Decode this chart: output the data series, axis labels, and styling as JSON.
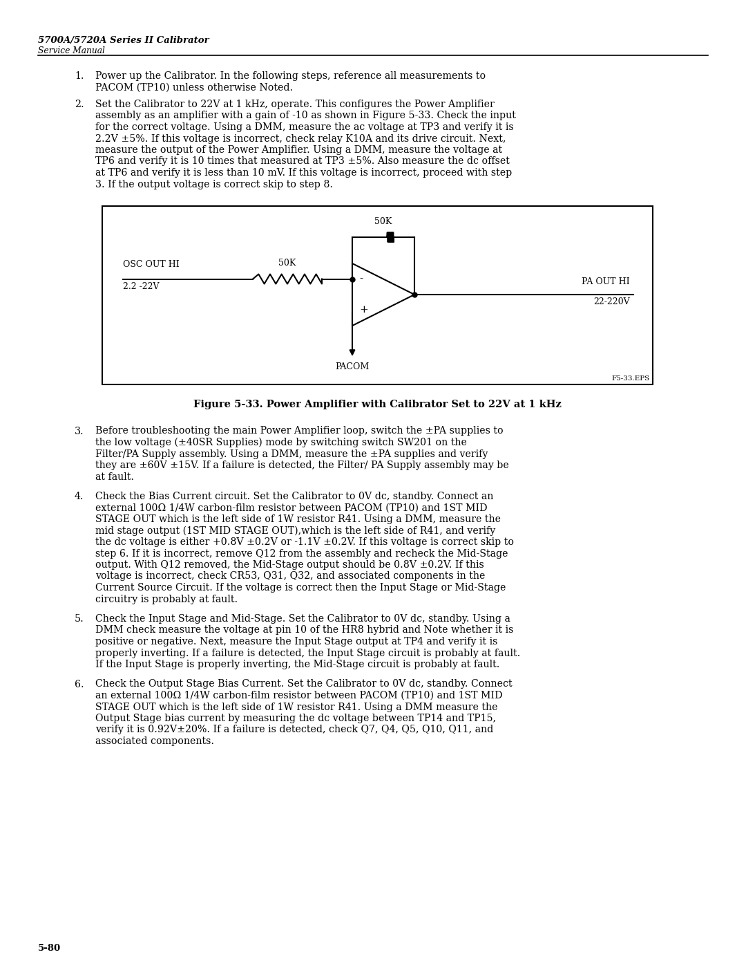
{
  "page_title": "5700A/5720A Series II Calibrator",
  "page_subtitle": "Service Manual",
  "page_number": "5-80",
  "figure_label": "F5-33.EPS",
  "figure_caption": "Figure 5-33. Power Amplifier with Calibrator Set to 22V at 1 kHz",
  "bg_color": "#ffffff",
  "text_color": "#000000",
  "para1_num": "1.",
  "para1_lines": [
    "Power up the Calibrator. In the following steps, reference all measurements to",
    "PACOM (TP10) unless otherwise Noted."
  ],
  "para2_num": "2.",
  "para2_lines": [
    "Set the Calibrator to 22V at 1 kHz, operate. This configures the Power Amplifier",
    "assembly as an amplifier with a gain of -10 as shown in Figure 5-33. Check the input",
    "for the correct voltage. Using a DMM, measure the ac voltage at TP3 and verify it is",
    "2.2V ±5%. If this voltage is incorrect, check relay K10A and its drive circuit. Next,",
    "measure the output of the Power Amplifier. Using a DMM, measure the voltage at",
    "TP6 and verify it is 10 times that measured at TP3 ±5%. Also measure the dc offset",
    "at TP6 and verify it is less than 10 mV. If this voltage is incorrect, proceed with step",
    "3. If the output voltage is correct skip to step 8."
  ],
  "para3_num": "3.",
  "para3_lines": [
    "Before troubleshooting the main Power Amplifier loop, switch the ±PA supplies to",
    "the low voltage (±40SR Supplies) mode by switching switch SW201 on the",
    "Filter/PA Supply assembly. Using a DMM, measure the ±PA supplies and verify",
    "they are ±60V ±15V. If a failure is detected, the Filter/ PA Supply assembly may be",
    "at fault."
  ],
  "para4_num": "4.",
  "para4_lines": [
    "Check the Bias Current circuit. Set the Calibrator to 0V dc, standby. Connect an",
    "external 100Ω 1/4W carbon-film resistor between PACOM (TP10) and 1ST MID",
    "STAGE OUT which is the left side of 1W resistor R41. Using a DMM, measure the",
    "mid stage output (1ST MID STAGE OUT),which is the left side of R41, and verify",
    "the dc voltage is either +0.8V ±0.2V or -1.1V ±0.2V. If this voltage is correct skip to",
    "step 6. If it is incorrect, remove Q12 from the assembly and recheck the Mid-Stage",
    "output. With Q12 removed, the Mid-Stage output should be 0.8V ±0.2V. If this",
    "voltage is incorrect, check CR53, Q31, Q32, and associated components in the",
    "Current Source Circuit. If the voltage is correct then the Input Stage or Mid-Stage",
    "circuitry is probably at fault."
  ],
  "para5_num": "5.",
  "para5_lines": [
    "Check the Input Stage and Mid-Stage. Set the Calibrator to 0V dc, standby. Using a",
    "DMM check measure the voltage at pin 10 of the HR8 hybrid and Note whether it is",
    "positive or negative. Next, measure the Input Stage output at TP4 and verify it is",
    "properly inverting. If a failure is detected, the Input Stage circuit is probably at fault.",
    "If the Input Stage is properly inverting, the Mid-Stage circuit is probably at fault."
  ],
  "para6_num": "6.",
  "para6_lines": [
    "Check the Output Stage Bias Current. Set the Calibrator to 0V dc, standby. Connect",
    "an external 100Ω 1/4W carbon-film resistor between PACOM (TP10) and 1ST MID",
    "STAGE OUT which is the left side of 1W resistor R41. Using a DMM measure the",
    "Output Stage bias current by measuring the dc voltage between TP14 and TP15,",
    "verify it is 0.92V±20%. If a failure is detected, check Q7, Q4, Q5, Q10, Q11, and",
    "associated components."
  ],
  "osc_label1": "OSC OUT HI",
  "osc_label2": "2.2 -22V",
  "res1_label": "50K",
  "res2_label": "50K",
  "pa_label1": "PA OUT HI",
  "pa_label2": "22-220V",
  "pacom_label": "PACOM",
  "minus_sign": "-",
  "plus_sign": "+"
}
